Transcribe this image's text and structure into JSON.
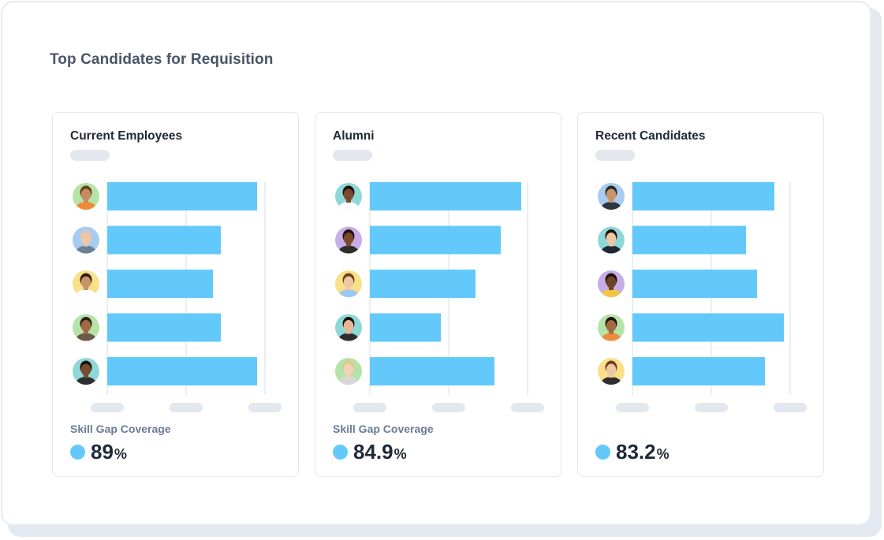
{
  "page": {
    "title": "Top Candidates for Requisition"
  },
  "colors": {
    "bar": "#62c9fa",
    "grid": "#e3e9f1",
    "placeholder": "#e3e7ee",
    "accent_dot": "#62c9fa"
  },
  "panels": [
    {
      "title": "Current Employees",
      "coverage_label": "Skill Gap Coverage",
      "coverage_value": "89",
      "coverage_unit": "%"
    },
    {
      "title": "Alumni",
      "coverage_label": "Skill Gap Coverage",
      "coverage_value": "84.9",
      "coverage_unit": "%"
    },
    {
      "title": "Recent Candidates",
      "coverage_label": "",
      "coverage_value": "83.2",
      "coverage_unit": "%"
    }
  ],
  "chart_data": [
    {
      "type": "bar",
      "orientation": "horizontal",
      "title": "Current Employees",
      "categories": [
        "",
        "",
        "",
        "",
        ""
      ],
      "avatars": [
        {
          "icon": "person-avatar-icon",
          "ring": "#b6e3a8",
          "skin": "#c58c62",
          "hair": "#6b3f1d",
          "shirt": "#f08a3c"
        },
        {
          "icon": "person-avatar-icon",
          "ring": "#a8ccf0",
          "skin": "#f0c7a3",
          "hair": "#c9c9c9",
          "shirt": "#6d7f99"
        },
        {
          "icon": "person-avatar-icon",
          "ring": "#fbe08a",
          "skin": "#c89468",
          "hair": "#2b1d12",
          "shirt": "#ffffff"
        },
        {
          "icon": "person-avatar-icon",
          "ring": "#b6e3a8",
          "skin": "#a06a45",
          "hair": "#2b1d12",
          "shirt": "#6b5a4a"
        },
        {
          "icon": "person-avatar-icon",
          "ring": "#8fd8d8",
          "skin": "#7a4a2c",
          "hair": "#1e120b",
          "shirt": "#2e2e2e"
        }
      ],
      "values": [
        95,
        72,
        67,
        72,
        95
      ],
      "xlim": [
        0,
        100
      ],
      "grid": true
    },
    {
      "type": "bar",
      "orientation": "horizontal",
      "title": "Alumni",
      "categories": [
        "",
        "",
        "",
        "",
        ""
      ],
      "avatars": [
        {
          "icon": "person-avatar-icon",
          "ring": "#8fd8d8",
          "skin": "#7a4a2c",
          "hair": "#1e120b",
          "shirt": "#ffffff"
        },
        {
          "icon": "person-avatar-icon",
          "ring": "#c8aee8",
          "skin": "#7a4a2c",
          "hair": "#1e120b",
          "shirt": "#2e2e2e"
        },
        {
          "icon": "person-avatar-icon",
          "ring": "#fbe08a",
          "skin": "#f0c7a3",
          "hair": "#6b3f1d",
          "shirt": "#9cc7ee"
        },
        {
          "icon": "person-avatar-icon",
          "ring": "#8fd8d8",
          "skin": "#e8b896",
          "hair": "#1e120b",
          "shirt": "#2e2e2e"
        },
        {
          "icon": "person-avatar-icon",
          "ring": "#b6e3a8",
          "skin": "#f3d2b8",
          "hair": "#e2c58f",
          "shirt": "#d8d8d8"
        }
      ],
      "values": [
        96,
        83,
        67,
        45,
        79
      ],
      "xlim": [
        0,
        100
      ],
      "grid": true
    },
    {
      "type": "bar",
      "orientation": "horizontal",
      "title": "Recent Candidates",
      "categories": [
        "",
        "",
        "",
        "",
        ""
      ],
      "avatars": [
        {
          "icon": "person-avatar-icon",
          "ring": "#a8ccf0",
          "skin": "#c89468",
          "hair": "#2b2b2b",
          "shirt": "#2e3440"
        },
        {
          "icon": "person-avatar-icon",
          "ring": "#8fd8d8",
          "skin": "#f0c7a3",
          "hair": "#1e120b",
          "shirt": "#1f2937"
        },
        {
          "icon": "person-avatar-icon",
          "ring": "#c8aee8",
          "skin": "#6e4428",
          "hair": "#1e120b",
          "shirt": "#f5c542"
        },
        {
          "icon": "person-avatar-icon",
          "ring": "#b6e3a8",
          "skin": "#a06a45",
          "hair": "#1e120b",
          "shirt": "#f08a3c"
        },
        {
          "icon": "person-avatar-icon",
          "ring": "#fbe08a",
          "skin": "#f0c7a3",
          "hair": "#6b3f1d",
          "shirt": "#2e2e2e"
        }
      ],
      "values": [
        90,
        72,
        79,
        96,
        84
      ],
      "xlim": [
        0,
        100
      ],
      "grid": true
    }
  ]
}
